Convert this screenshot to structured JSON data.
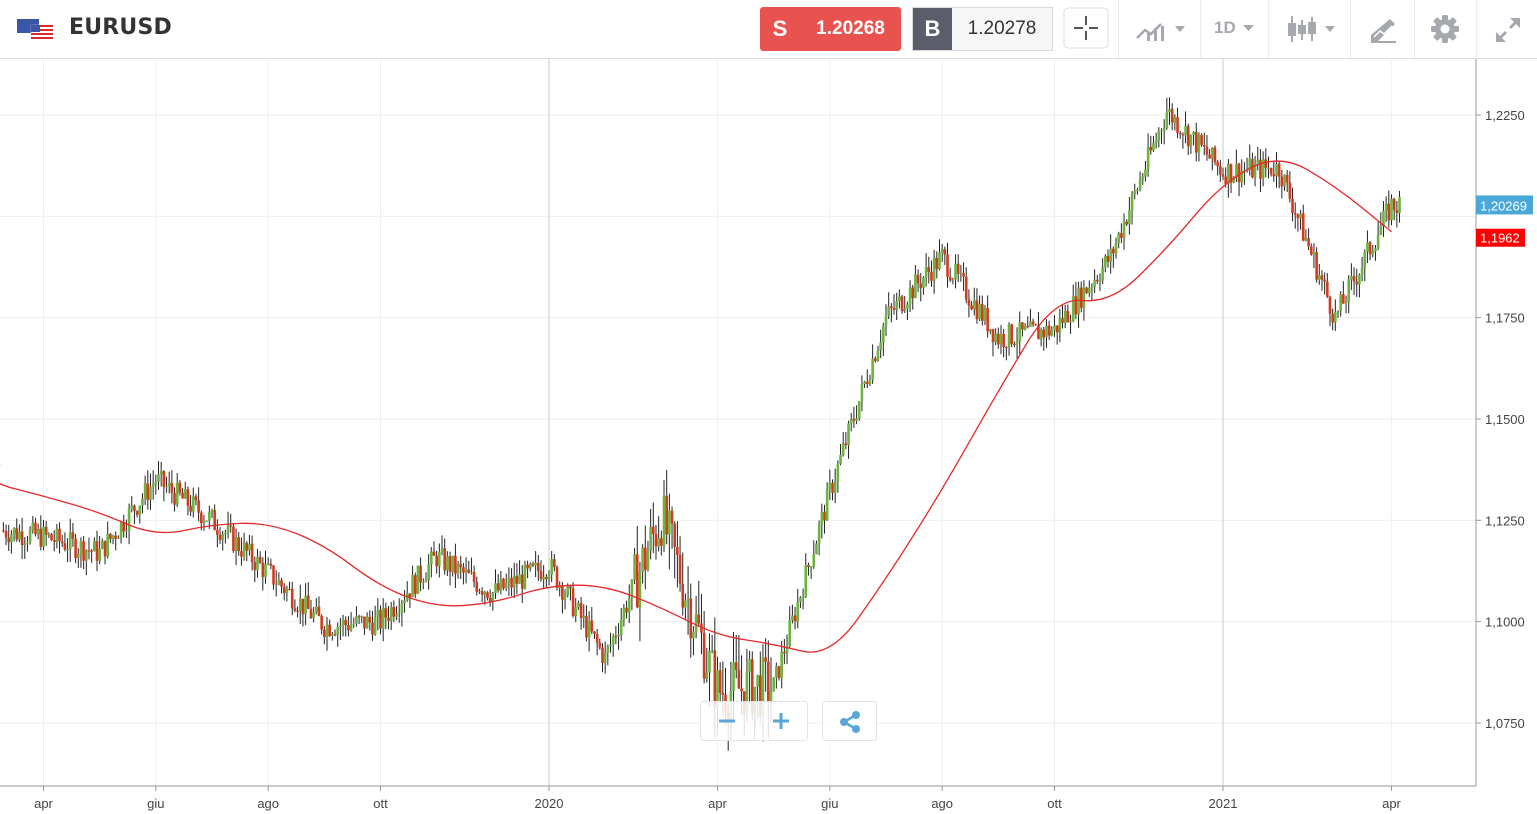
{
  "header": {
    "symbol": "EURUSD",
    "flag_icon": "eu-us-flag-icon",
    "sell": {
      "tag": "S",
      "price": "1.20268",
      "color": "#e9534f"
    },
    "buy": {
      "tag": "B",
      "price": "1.20278",
      "tag_color": "#5b5e6a"
    },
    "tools": [
      {
        "icon": "crosshair-icon"
      },
      {
        "icon": "compare-chart-icon"
      },
      {
        "icon": "timeframe-dropdown",
        "label": "1D"
      },
      {
        "icon": "candlestick-type-icon"
      },
      {
        "icon": "drawing-tools-icon"
      },
      {
        "icon": "gear-icon"
      },
      {
        "icon": "fullscreen-icon"
      }
    ]
  },
  "controls": {
    "zoom_out_icon": "minus-icon",
    "zoom_in_icon": "plus-icon",
    "share_icon": "share-icon"
  },
  "chart_data": {
    "type": "candlestick",
    "symbol": "EURUSD",
    "interval": "1D",
    "ylim": [
      1.06,
      1.2375
    ],
    "y_ticks": [
      "1,0750",
      "1,1000",
      "1,1250",
      "1,1500",
      "1,1750",
      "1,2250"
    ],
    "x_ticks": [
      "apr",
      "giu",
      "ago",
      "ott",
      "2020",
      "apr",
      "giu",
      "ago",
      "ott",
      "2021",
      "apr"
    ],
    "x_ticks_year_marks": [
      "2020",
      "2021"
    ],
    "colors": {
      "up": "#6cb33f",
      "down": "#d23b1e",
      "wick": "#222222",
      "moving_average": "#e6282a",
      "last_price": "#4aa8d8",
      "ma_label": "#ff0000"
    },
    "last_price": {
      "value": 1.20269,
      "label": "1,20269"
    },
    "moving_average": {
      "name": "",
      "last_label": "1,1962",
      "points": [
        {
          "x": "2019-02",
          "y": 1.139
        },
        {
          "x": "2019-03",
          "y": 1.1345
        },
        {
          "x": "2019-04",
          "y": 1.131
        },
        {
          "x": "2019-05",
          "y": 1.127
        },
        {
          "x": "2019-06",
          "y": 1.121
        },
        {
          "x": "2019-07",
          "y": 1.124
        },
        {
          "x": "2019-08",
          "y": 1.1245
        },
        {
          "x": "2019-09",
          "y": 1.119
        },
        {
          "x": "2019-10",
          "y": 1.1085
        },
        {
          "x": "2019-11",
          "y": 1.1035
        },
        {
          "x": "2019-12",
          "y": 1.1045
        },
        {
          "x": "2020-01",
          "y": 1.109
        },
        {
          "x": "2020-02",
          "y": 1.109
        },
        {
          "x": "2020-03",
          "y": 1.1035
        },
        {
          "x": "2020-04",
          "y": 1.0965
        },
        {
          "x": "2020-05",
          "y": 1.0945
        },
        {
          "x": "2020-06",
          "y": 1.091
        },
        {
          "x": "2020-07",
          "y": 1.1105
        },
        {
          "x": "2020-08",
          "y": 1.1325
        },
        {
          "x": "2020-09",
          "y": 1.157
        },
        {
          "x": "2020-10",
          "y": 1.18
        },
        {
          "x": "2020-11",
          "y": 1.1785
        },
        {
          "x": "2020-12",
          "y": 1.192
        },
        {
          "x": "2021-01",
          "y": 1.2085
        },
        {
          "x": "2021-02",
          "y": 1.2155
        },
        {
          "x": "2021-03",
          "y": 1.2075
        },
        {
          "x": "2021-04",
          "y": 1.1962
        }
      ]
    },
    "price_path": [
      {
        "x": "2019-02",
        "y": 1.13
      },
      {
        "x": "2019-03",
        "y": 1.123
      },
      {
        "x": "2019-04",
        "y": 1.121
      },
      {
        "x": "2019-05",
        "y": 1.117
      },
      {
        "x": "2019-06",
        "y": 1.135
      },
      {
        "x": "2019-07",
        "y": 1.125
      },
      {
        "x": "2019-08",
        "y": 1.112
      },
      {
        "x": "2019-09",
        "y": 1.099
      },
      {
        "x": "2019-10",
        "y": 1.1
      },
      {
        "x": "2019-11",
        "y": 1.116
      },
      {
        "x": "2019-12",
        "y": 1.107
      },
      {
        "x": "2020-01",
        "y": 1.114
      },
      {
        "x": "2020-02",
        "y": 1.091
      },
      {
        "x": "2020-03",
        "y": 1.126
      },
      {
        "x": "2020-04",
        "y": 1.083
      },
      {
        "x": "2020-05",
        "y": 1.084
      },
      {
        "x": "2020-06",
        "y": 1.132
      },
      {
        "x": "2020-07",
        "y": 1.175
      },
      {
        "x": "2020-08",
        "y": 1.19
      },
      {
        "x": "2020-09",
        "y": 1.17
      },
      {
        "x": "2020-10",
        "y": 1.172
      },
      {
        "x": "2020-11",
        "y": 1.19
      },
      {
        "x": "2020-12",
        "y": 1.226
      },
      {
        "x": "2021-01",
        "y": 1.211
      },
      {
        "x": "2021-02",
        "y": 1.212
      },
      {
        "x": "2021-03",
        "y": 1.175
      },
      {
        "x": "2021-04",
        "y": 1.2027
      }
    ]
  }
}
